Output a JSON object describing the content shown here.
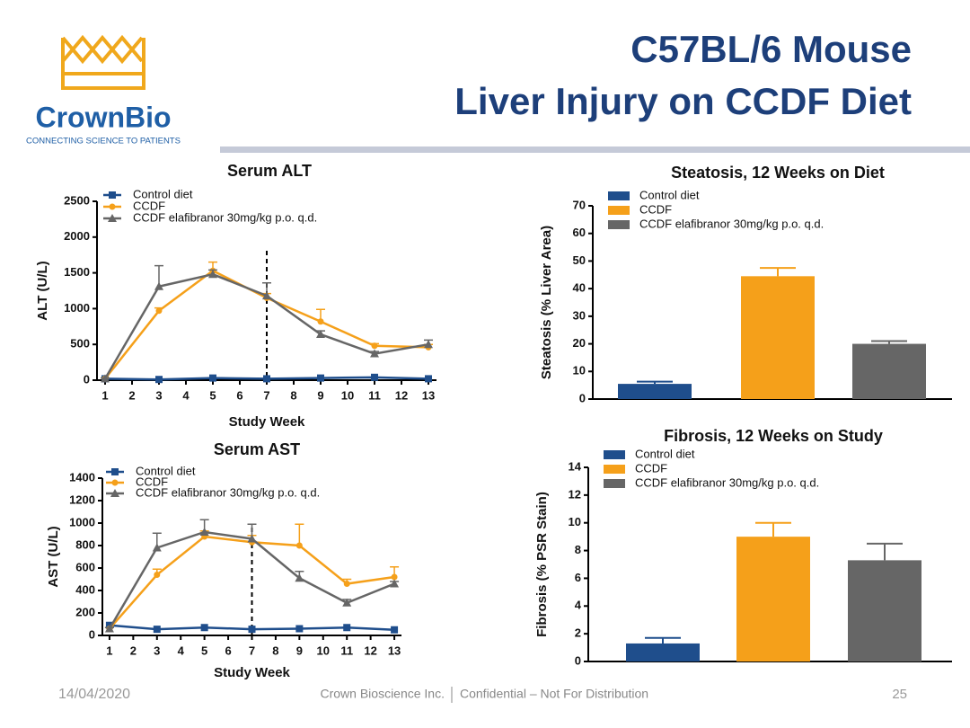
{
  "header": {
    "logo_name": "CrownBio",
    "logo_tagline": "CONNECTING SCIENCE TO PATIENTS",
    "title_line1": "C57BL/6 Mouse",
    "title_line2": "Liver Injury on CCDF Diet"
  },
  "footer": {
    "date": "14/04/2020",
    "company": "Crown Bioscience Inc.",
    "confidential": "Confidential – Not For Distribution",
    "page": "25"
  },
  "chart_data": [
    {
      "type": "line",
      "title": "Serum ALT",
      "x_label": "Study Week",
      "y_label": "ALT (U/L)",
      "legend": "upper left",
      "x": [
        1,
        3,
        5,
        7,
        9,
        11,
        13
      ],
      "xlim": [
        0.7,
        13.3
      ],
      "xticks": [
        1,
        2,
        3,
        4,
        5,
        6,
        7,
        8,
        9,
        10,
        11,
        12,
        13
      ],
      "ylim": [
        0,
        2500
      ],
      "yticks": [
        0,
        500,
        1000,
        1500,
        2000,
        2500
      ],
      "vline": 7,
      "series": [
        {
          "name": "Control diet",
          "color": "#1f4e8c",
          "marker": "square",
          "values": [
            20,
            10,
            30,
            20,
            30,
            40,
            20
          ]
        },
        {
          "name": "CCDF",
          "color": "#f5a01a",
          "marker": "circle",
          "values": [
            20,
            970,
            1530,
            1150,
            820,
            480,
            460
          ],
          "errors": [
            10,
            40,
            120,
            60,
            170,
            30,
            40
          ]
        },
        {
          "name": "CCDF elafibranor 30mg/kg p.o. q.d.",
          "color": "#666666",
          "marker": "triangle",
          "values": [
            20,
            1310,
            1480,
            1180,
            640,
            370,
            500
          ],
          "errors": [
            10,
            290,
            60,
            180,
            50,
            30,
            60
          ]
        }
      ]
    },
    {
      "type": "line",
      "title": "Serum AST",
      "x_label": "Study Week",
      "y_label": "AST (U/L)",
      "legend": "upper left",
      "x": [
        1,
        3,
        5,
        7,
        9,
        11,
        13
      ],
      "xlim": [
        0.7,
        13.3
      ],
      "xticks": [
        1,
        2,
        3,
        4,
        5,
        6,
        7,
        8,
        9,
        10,
        11,
        12,
        13
      ],
      "ylim": [
        0,
        1400
      ],
      "yticks": [
        0,
        200,
        400,
        600,
        800,
        1000,
        1200,
        1400
      ],
      "vline": 7,
      "series": [
        {
          "name": "Control diet",
          "color": "#1f4e8c",
          "marker": "square",
          "values": [
            90,
            55,
            70,
            55,
            60,
            70,
            50
          ]
        },
        {
          "name": "CCDF",
          "color": "#f5a01a",
          "marker": "circle",
          "values": [
            60,
            540,
            880,
            830,
            800,
            460,
            520
          ],
          "errors": [
            10,
            50,
            50,
            60,
            190,
            40,
            90
          ]
        },
        {
          "name": "CCDF elafibranor 30mg/kg p.o. q.d.",
          "color": "#666666",
          "marker": "triangle",
          "values": [
            60,
            780,
            920,
            860,
            510,
            290,
            460
          ],
          "errors": [
            10,
            130,
            110,
            130,
            60,
            30,
            20
          ]
        }
      ]
    },
    {
      "type": "bar",
      "title": "Steatosis, 12 Weeks on Diet",
      "y_label": "Steatosis (% Liver Area)",
      "legend": "upper left",
      "categories": [
        "Control diet",
        "CCDF",
        "CCDF elafibranor 30mg/kg p.o. q.d."
      ],
      "colors": [
        "#1f4e8c",
        "#f5a01a",
        "#666666"
      ],
      "values": [
        5.5,
        44.5,
        20
      ],
      "errors": [
        0.8,
        3,
        1
      ],
      "ylim": [
        0,
        70
      ],
      "yticks": [
        0,
        10,
        20,
        30,
        40,
        50,
        60,
        70
      ]
    },
    {
      "type": "bar",
      "title": "Fibrosis, 12 Weeks on Study",
      "y_label": "Fibrosis (% PSR Stain)",
      "legend": "upper left",
      "categories": [
        "Control diet",
        "CCDF",
        "CCDF elafibranor 30mg/kg p.o. q.d."
      ],
      "colors": [
        "#1f4e8c",
        "#f5a01a",
        "#666666"
      ],
      "values": [
        1.3,
        9.0,
        7.3
      ],
      "errors": [
        0.4,
        1.0,
        1.2
      ],
      "ylim": [
        0,
        14
      ],
      "yticks": [
        0,
        2,
        4,
        6,
        8,
        10,
        12,
        14
      ]
    }
  ]
}
